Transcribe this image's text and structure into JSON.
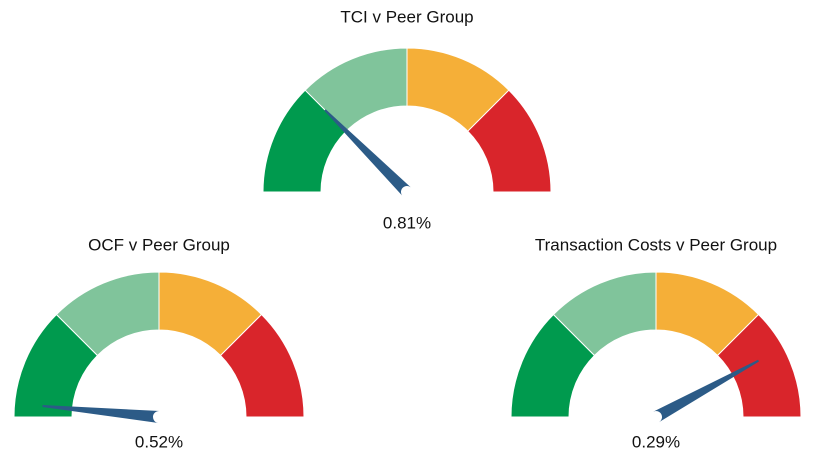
{
  "chart_data": [
    {
      "type": "gauge",
      "title": "TCI v Peer Group",
      "value_label": "0.81%",
      "needle": 25,
      "scale": [
        0,
        100
      ],
      "band_edges": [
        0,
        25,
        50,
        75,
        100
      ],
      "band_colors": [
        "#009a4e",
        "#80c49b",
        "#f5af38",
        "#d9252b"
      ],
      "needle_color": "#2c5b87"
    },
    {
      "type": "gauge",
      "title": "OCF v Peer Group",
      "value_label": "0.52%",
      "needle": 3,
      "scale": [
        0,
        100
      ],
      "band_edges": [
        0,
        25,
        50,
        75,
        100
      ],
      "band_colors": [
        "#009a4e",
        "#80c49b",
        "#f5af38",
        "#d9252b"
      ],
      "needle_color": "#2c5b87"
    },
    {
      "type": "gauge",
      "title": "Transaction Costs v Peer Group",
      "value_label": "0.29%",
      "needle": 84,
      "scale": [
        0,
        100
      ],
      "band_edges": [
        0,
        25,
        50,
        75,
        100
      ],
      "band_colors": [
        "#009a4e",
        "#80c49b",
        "#f5af38",
        "#d9252b"
      ],
      "needle_color": "#2c5b87"
    }
  ]
}
